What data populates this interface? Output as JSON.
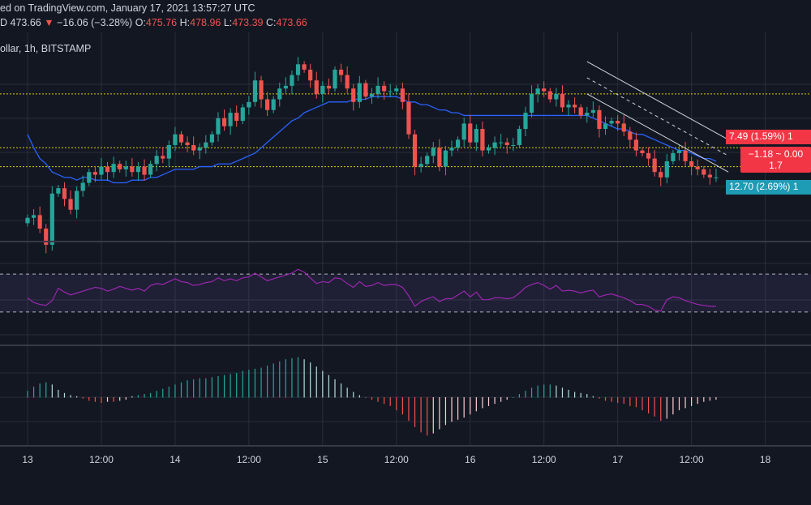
{
  "header": {
    "published": "ed on TradingView.com, January 17, 2021 13:57:27 UTC",
    "symbol_line": "ollar, 1h, BITSTAMP",
    "ohlc": {
      "close_frag": "D",
      "last": "473.66",
      "arrow": "▼",
      "change": "−16.06 (−3.28%)",
      "o_label": "O:",
      "o": "475.76",
      "h_label": "H:",
      "h": "478.96",
      "l_label": "L:",
      "l": "473.39",
      "c_label": "C:",
      "c": "473.66"
    }
  },
  "tags": {
    "target_up": "7.49 (1.59%) 1",
    "box_line1": "−1.18 ~ 0.00",
    "box_line2": "1.7",
    "target_down": "12.70 (2.69%) 1"
  },
  "colors": {
    "background": "#131722",
    "up": "#26a69a",
    "down": "#ef5350",
    "ma": "#2962ff",
    "rsi": "#9c27b0",
    "level": "#e0d000",
    "channel": "#d1d4dc"
  },
  "chart_data": {
    "type": "candlestick",
    "xticks": [
      {
        "label": "13",
        "x": 0
      },
      {
        "label": "12:00",
        "x": 12
      },
      {
        "label": "14",
        "x": 24
      },
      {
        "label": "12:00",
        "x": 36
      },
      {
        "label": "15",
        "x": 48
      },
      {
        "label": "12:00",
        "x": 60
      },
      {
        "label": "16",
        "x": 72
      },
      {
        "label": "12:00",
        "x": 84
      },
      {
        "label": "17",
        "x": 96
      },
      {
        "label": "12:00",
        "x": 108
      },
      {
        "label": "18",
        "x": 120
      }
    ],
    "closes": [
      459,
      460,
      455,
      449,
      468,
      470,
      466,
      462,
      469,
      472,
      476,
      475,
      478,
      476,
      479,
      477,
      478,
      476,
      478,
      475,
      479,
      482,
      481,
      486,
      490,
      487,
      486,
      484,
      485,
      487,
      490,
      496,
      493,
      498,
      495,
      500,
      502,
      510,
      503,
      499,
      503,
      507,
      508,
      512,
      516,
      514,
      510,
      505,
      508,
      507,
      514,
      512,
      507,
      502,
      509,
      504,
      505,
      508,
      506,
      506,
      507,
      502,
      490,
      478,
      479,
      482,
      485,
      478,
      484,
      485,
      488,
      494,
      487,
      492,
      484,
      485,
      487,
      487,
      486,
      486,
      492,
      498,
      505,
      507,
      506,
      503,
      505,
      500,
      501,
      500,
      497,
      498,
      499,
      492,
      494,
      495,
      494,
      491,
      488,
      484,
      483,
      481,
      476,
      474,
      480,
      483,
      484,
      480,
      478,
      477,
      475,
      474,
      474
    ],
    "ma": [
      490,
      485,
      481,
      479,
      476,
      475,
      474,
      474,
      473,
      474,
      474,
      473,
      473,
      473,
      472,
      472,
      472,
      473,
      473,
      473,
      474,
      474,
      475,
      476,
      477,
      477,
      477,
      477,
      478,
      478,
      478,
      479,
      479,
      479,
      480,
      481,
      482,
      483,
      485,
      487,
      489,
      491,
      493,
      495,
      496,
      498,
      499,
      500,
      501,
      502,
      502,
      502,
      502,
      503,
      503,
      503,
      504,
      504,
      504,
      504,
      504,
      503,
      502,
      502,
      501,
      501,
      500,
      499,
      499,
      498,
      498,
      497,
      497,
      497,
      497,
      497,
      497,
      497,
      497,
      497,
      497,
      497,
      497,
      497,
      497,
      497,
      497,
      497,
      497,
      497,
      497,
      497,
      496,
      495,
      494,
      493,
      492,
      492,
      491,
      490,
      490,
      489,
      488,
      487,
      486,
      485,
      484,
      484,
      483,
      482,
      481,
      481,
      480
    ],
    "rsi": [
      45,
      40,
      38,
      37,
      42,
      55,
      51,
      48,
      50,
      52,
      54,
      56,
      55,
      52,
      54,
      57,
      55,
      53,
      55,
      52,
      58,
      60,
      59,
      62,
      65,
      62,
      61,
      58,
      59,
      61,
      62,
      66,
      63,
      65,
      63,
      66,
      67,
      71,
      67,
      63,
      65,
      67,
      69,
      71,
      75,
      72,
      66,
      60,
      62,
      61,
      66,
      65,
      60,
      56,
      62,
      57,
      58,
      61,
      58,
      59,
      59,
      56,
      47,
      36,
      41,
      44,
      46,
      41,
      44,
      44,
      48,
      52,
      46,
      51,
      43,
      43,
      45,
      45,
      44,
      45,
      50,
      56,
      59,
      61,
      58,
      54,
      58,
      52,
      53,
      52,
      50,
      52,
      53,
      46,
      48,
      49,
      47,
      45,
      42,
      38,
      38,
      36,
      32,
      31,
      43,
      46,
      45,
      42,
      40,
      38,
      37,
      36,
      36
    ],
    "hist": [
      0.6,
      1.0,
      1.3,
      1.4,
      1.2,
      0.7,
      0.4,
      0.2,
      0.1,
      -0.1,
      -0.3,
      -0.4,
      -0.5,
      -0.4,
      -0.4,
      -0.3,
      -0.2,
      0.1,
      0.2,
      0.3,
      0.4,
      0.6,
      0.8,
      1.0,
      1.2,
      1.4,
      1.6,
      1.7,
      1.8,
      1.8,
      1.9,
      2.0,
      2.1,
      2.2,
      2.3,
      2.5,
      2.6,
      2.7,
      2.8,
      3.0,
      3.2,
      3.4,
      3.6,
      3.7,
      3.8,
      3.6,
      3.3,
      2.9,
      2.5,
      2.1,
      1.7,
      1.3,
      0.9,
      0.5,
      0.2,
      0.0,
      -0.2,
      -0.4,
      -0.6,
      -0.8,
      -1.2,
      -1.6,
      -2.2,
      -2.8,
      -3.3,
      -3.6,
      -3.4,
      -3.0,
      -2.6,
      -2.3,
      -2.1,
      -1.9,
      -1.6,
      -1.3,
      -1.0,
      -0.8,
      -0.6,
      -0.4,
      -0.2,
      0.0,
      0.3,
      0.6,
      0.9,
      1.1,
      1.2,
      1.2,
      1.1,
      0.9,
      0.7,
      0.5,
      0.4,
      0.3,
      0.1,
      -0.1,
      -0.3,
      -0.4,
      -0.5,
      -0.6,
      -0.8,
      -0.9,
      -1.2,
      -1.5,
      -1.8,
      -2.2,
      -2.0,
      -1.6,
      -1.2,
      -1.0,
      -0.8,
      -0.6,
      -0.4,
      -0.3,
      -0.2
    ],
    "price_range": [
      455,
      520
    ],
    "rsi_range": [
      0,
      100
    ],
    "rsi_levels": [
      70,
      30
    ],
    "hist_range": [
      -4,
      4
    ],
    "horizontal_levels": [
      505,
      485,
      478
    ],
    "channel_upper": [
      {
        "x": 91,
        "y": 517
      },
      {
        "x": 114,
        "y": 488
      }
    ],
    "channel_lower": [
      {
        "x": 91,
        "y": 505
      },
      {
        "x": 114,
        "y": 476
      }
    ],
    "channel_mid": [
      {
        "x": 91,
        "y": 511
      },
      {
        "x": 114,
        "y": 482
      }
    ]
  }
}
